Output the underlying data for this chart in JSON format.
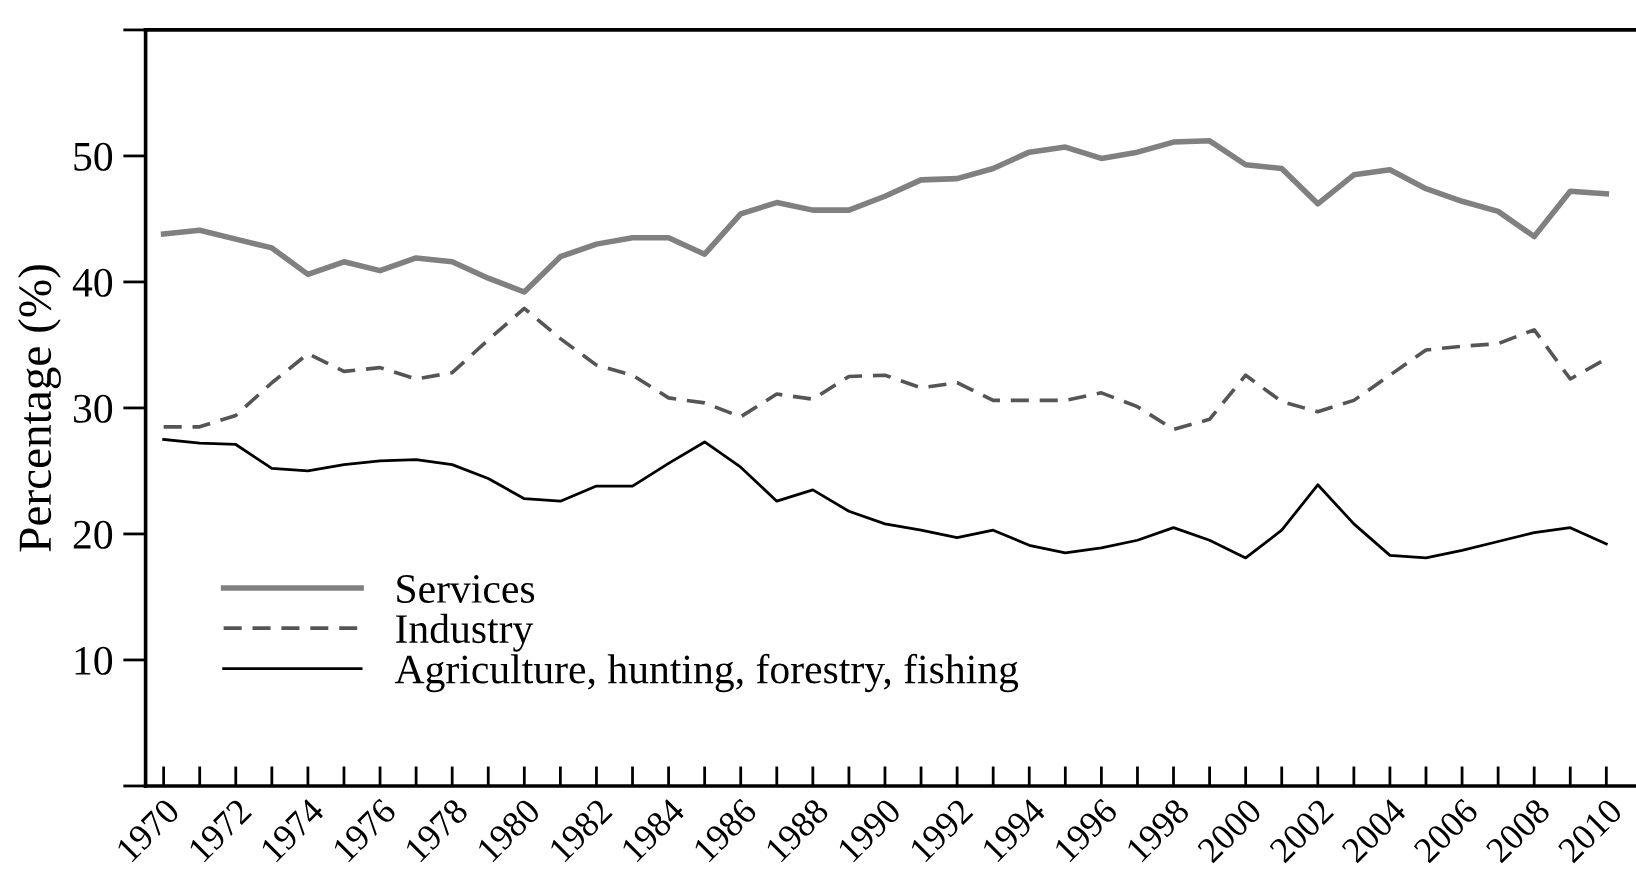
{
  "chart_data": {
    "type": "line",
    "ylabel": "Percentage (%)",
    "x": [
      1970,
      1971,
      1972,
      1973,
      1974,
      1975,
      1976,
      1977,
      1978,
      1979,
      1980,
      1981,
      1982,
      1983,
      1984,
      1985,
      1986,
      1987,
      1988,
      1989,
      1990,
      1991,
      1992,
      1993,
      1994,
      1995,
      1996,
      1997,
      1998,
      1999,
      2000,
      2001,
      2002,
      2003,
      2004,
      2005,
      2006,
      2007,
      2008,
      2009,
      2010
    ],
    "series": [
      {
        "name": "Services",
        "color": "#808080",
        "line_style": "solid",
        "values": [
          43.8,
          44.1,
          43.4,
          42.7,
          40.6,
          41.6,
          40.9,
          41.9,
          41.6,
          40.3,
          39.2,
          42.0,
          43.0,
          43.5,
          43.5,
          42.2,
          45.4,
          46.3,
          45.7,
          45.7,
          46.8,
          48.1,
          48.2,
          49.0,
          50.3,
          50.7,
          49.8,
          50.3,
          51.1,
          51.2,
          49.3,
          49.0,
          46.2,
          48.5,
          48.9,
          47.4,
          46.4,
          45.6,
          43.6,
          47.2,
          47.0
        ]
      },
      {
        "name": "Industry",
        "color": "#555555",
        "line_style": "dashed",
        "values": [
          28.5,
          28.5,
          29.4,
          32.0,
          34.3,
          32.9,
          33.2,
          32.3,
          32.8,
          35.4,
          37.9,
          35.5,
          33.4,
          32.6,
          30.8,
          30.4,
          29.3,
          31.1,
          30.7,
          32.5,
          32.6,
          31.6,
          32.0,
          30.6,
          30.6,
          30.6,
          31.2,
          30.1,
          28.3,
          29.1,
          32.6,
          30.5,
          29.7,
          30.6,
          32.6,
          34.6,
          34.9,
          35.1,
          36.2,
          32.3,
          33.9
        ]
      },
      {
        "name": "Agriculture, hunting, forestry, fishing",
        "color": "#000000",
        "line_style": "solid",
        "values": [
          27.5,
          27.2,
          27.1,
          25.2,
          25.0,
          25.5,
          25.8,
          25.9,
          25.5,
          24.4,
          22.8,
          22.6,
          23.8,
          23.8,
          25.6,
          27.3,
          25.3,
          22.6,
          23.5,
          21.8,
          20.8,
          20.3,
          19.7,
          20.3,
          19.1,
          18.5,
          18.9,
          19.5,
          20.5,
          19.5,
          18.1,
          20.3,
          23.9,
          20.8,
          18.3,
          18.1,
          18.7,
          19.4,
          20.1,
          20.5,
          19.2
        ]
      }
    ],
    "xlim": [
      1969.5,
      2010.8
    ],
    "xticks": [
      1970,
      {
        "value": 1971,
        "label": null
      },
      1972,
      {
        "value": 1973,
        "label": null
      },
      1974,
      {
        "value": 1975,
        "label": null
      },
      1976,
      {
        "value": 1977,
        "label": null
      },
      1978,
      {
        "value": 1979,
        "label": null
      },
      1980,
      {
        "value": 1981,
        "label": null
      },
      1982,
      {
        "value": 1983,
        "label": null
      },
      1984,
      {
        "value": 1985,
        "label": null
      },
      1986,
      {
        "value": 1987,
        "label": null
      },
      1988,
      {
        "value": 1989,
        "label": null
      },
      1990,
      {
        "value": 1991,
        "label": null
      },
      1992,
      {
        "value": 1993,
        "label": null
      },
      1994,
      {
        "value": 1995,
        "label": null
      },
      1996,
      {
        "value": 1997,
        "label": null
      },
      1998,
      {
        "value": 1999,
        "label": null
      },
      2000,
      {
        "value": 2001,
        "label": null
      },
      2002,
      {
        "value": 2003,
        "label": null
      },
      2004,
      {
        "value": 2005,
        "label": null
      },
      2006,
      {
        "value": 2007,
        "label": null
      },
      2008,
      {
        "value": 2009,
        "label": null
      },
      2010
    ],
    "ylim": [
      0,
      60
    ],
    "yticks": [
      {
        "value": 0,
        "label": null
      },
      10,
      20,
      30,
      40,
      50,
      {
        "value": 60,
        "label": null
      }
    ],
    "grid": false,
    "legend": "bottom left"
  }
}
